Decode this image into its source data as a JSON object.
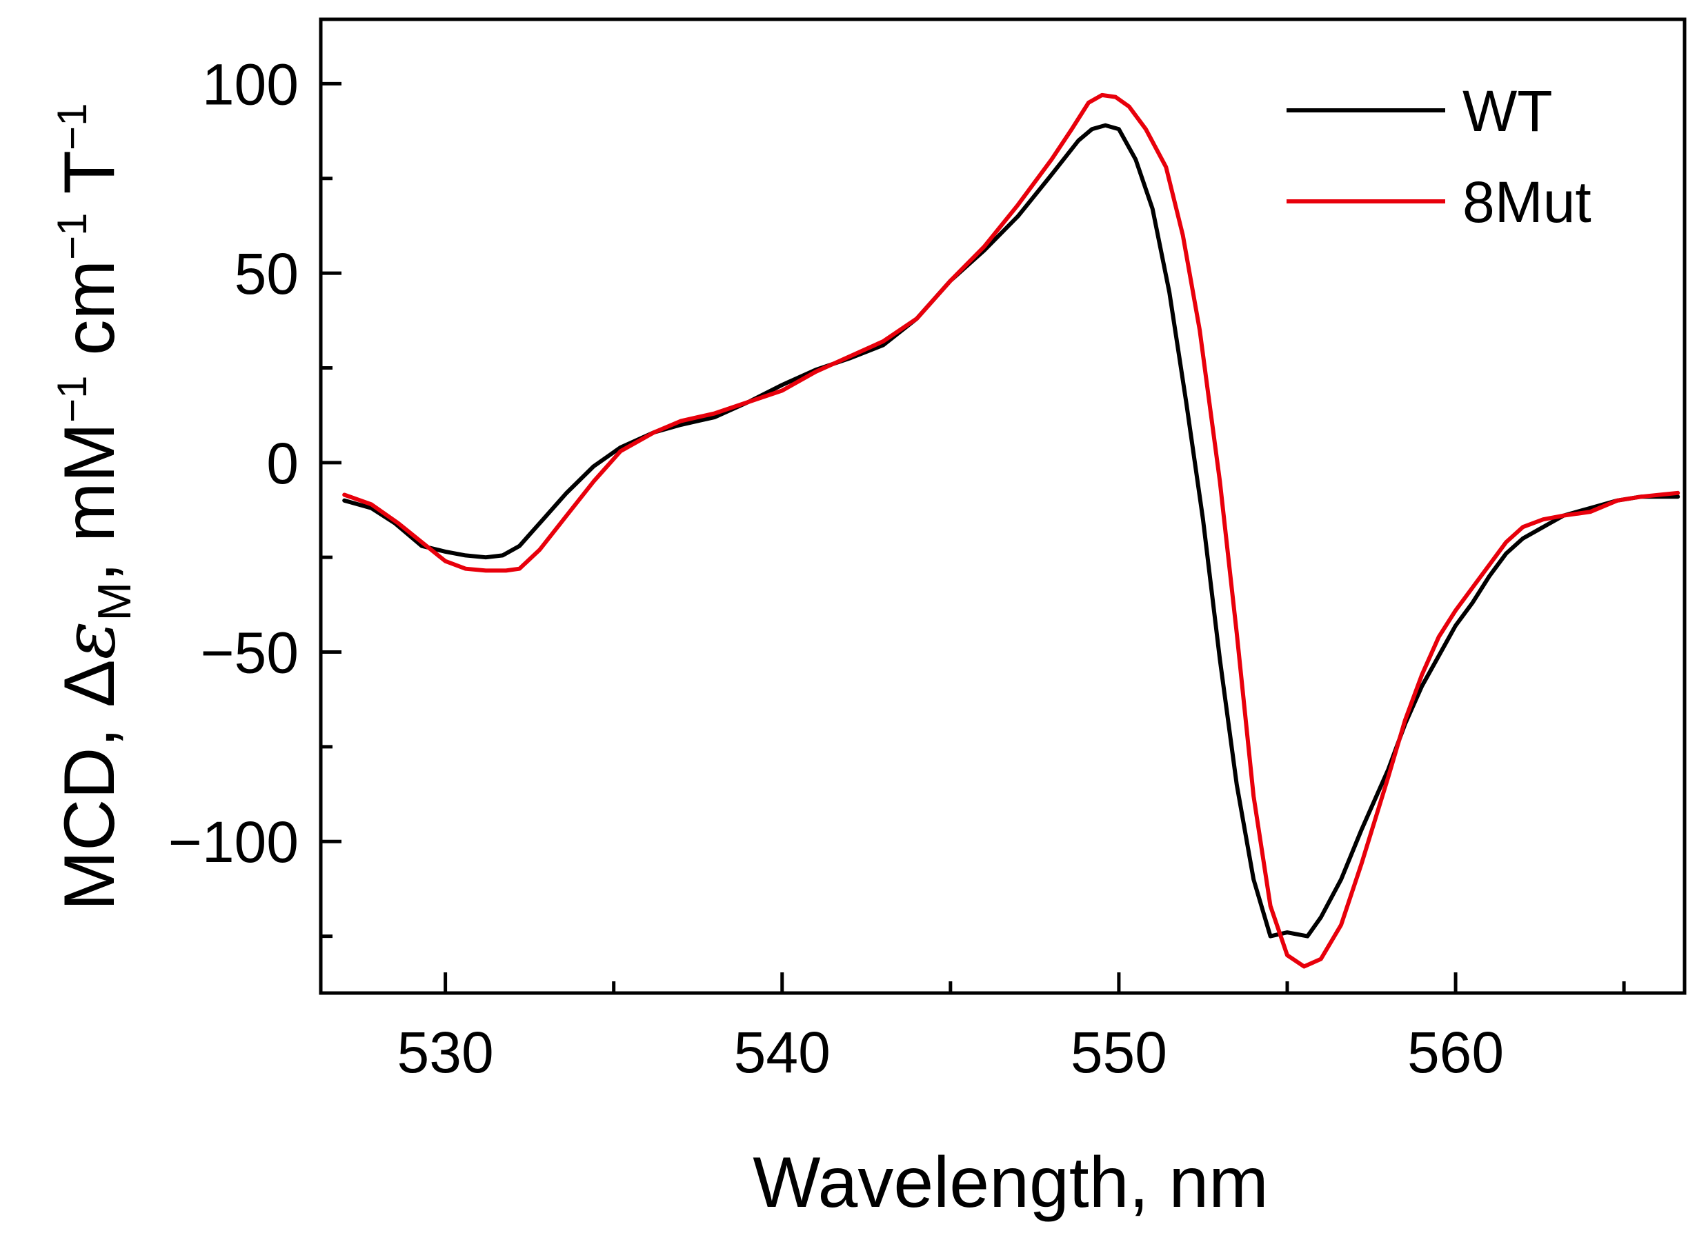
{
  "chart_data": {
    "type": "line",
    "title": "",
    "xlabel": "Wavelength, nm",
    "ylabel": {
      "prefix": "MCD, Δ",
      "epsilon": "ε",
      "epsilon_sub": "M",
      "sep": ", ",
      "mM": "mM",
      "mM_exp": "−1",
      "cm": " cm",
      "cm_exp": "−1",
      "T": " T",
      "T_exp": "−1"
    },
    "xlim": [
      526.3,
      566.8
    ],
    "ylim": [
      -140,
      117
    ],
    "x_ticks": [
      530,
      540,
      550,
      560
    ],
    "x_tick_labels": [
      "530",
      "540",
      "550",
      "560"
    ],
    "x_minor_ticks": [
      535,
      545,
      555,
      565
    ],
    "y_ticks": [
      -100,
      -50,
      0,
      50,
      100
    ],
    "y_tick_labels": [
      "−100",
      "−50",
      "0",
      "50",
      "100"
    ],
    "y_minor_ticks": [
      -125,
      -75,
      -25,
      25,
      75
    ],
    "grid": false,
    "legend_position": "top-right",
    "series": [
      {
        "name": "WT",
        "color": "#000000",
        "points": [
          [
            527.0,
            -10
          ],
          [
            527.8,
            -12
          ],
          [
            528.5,
            -16
          ],
          [
            529.3,
            -22
          ],
          [
            530.0,
            -23.5
          ],
          [
            530.6,
            -24.5
          ],
          [
            531.2,
            -25
          ],
          [
            531.7,
            -24.5
          ],
          [
            532.2,
            -22
          ],
          [
            532.8,
            -16
          ],
          [
            533.6,
            -8
          ],
          [
            534.4,
            -1
          ],
          [
            535.2,
            4
          ],
          [
            536.2,
            8
          ],
          [
            537.0,
            10
          ],
          [
            538.0,
            12
          ],
          [
            539.0,
            16
          ],
          [
            540.0,
            20.5
          ],
          [
            541.0,
            24.5
          ],
          [
            542.0,
            27.5
          ],
          [
            543.0,
            31
          ],
          [
            544.0,
            38
          ],
          [
            545.0,
            48
          ],
          [
            546.0,
            56
          ],
          [
            547.0,
            65
          ],
          [
            548.0,
            76
          ],
          [
            548.8,
            85
          ],
          [
            549.2,
            88
          ],
          [
            549.6,
            89
          ],
          [
            550.0,
            88
          ],
          [
            550.5,
            80
          ],
          [
            551.0,
            67
          ],
          [
            551.5,
            45
          ],
          [
            552.0,
            16
          ],
          [
            552.5,
            -15
          ],
          [
            553.0,
            -52
          ],
          [
            553.5,
            -85
          ],
          [
            554.0,
            -110
          ],
          [
            554.5,
            -125
          ],
          [
            555.0,
            -124
          ],
          [
            555.6,
            -125
          ],
          [
            556.0,
            -120
          ],
          [
            556.6,
            -110
          ],
          [
            557.2,
            -97
          ],
          [
            558.0,
            -81
          ],
          [
            558.5,
            -69
          ],
          [
            559.0,
            -59
          ],
          [
            559.5,
            -51
          ],
          [
            560.0,
            -43
          ],
          [
            560.5,
            -37
          ],
          [
            561.0,
            -30
          ],
          [
            561.5,
            -24
          ],
          [
            562.0,
            -20
          ],
          [
            562.6,
            -17
          ],
          [
            563.2,
            -14
          ],
          [
            564.0,
            -12
          ],
          [
            564.8,
            -10
          ],
          [
            565.5,
            -9
          ],
          [
            566.6,
            -9
          ]
        ]
      },
      {
        "name": "8Mut",
        "color": "#e8000b",
        "points": [
          [
            527.0,
            -8.5
          ],
          [
            527.8,
            -11
          ],
          [
            528.6,
            -16
          ],
          [
            529.3,
            -21
          ],
          [
            530.0,
            -26
          ],
          [
            530.6,
            -28
          ],
          [
            531.2,
            -28.5
          ],
          [
            531.8,
            -28.5
          ],
          [
            532.2,
            -28
          ],
          [
            532.8,
            -23
          ],
          [
            533.6,
            -14
          ],
          [
            534.4,
            -5
          ],
          [
            535.2,
            3
          ],
          [
            536.2,
            8
          ],
          [
            537.0,
            11
          ],
          [
            538.0,
            13
          ],
          [
            539.0,
            16
          ],
          [
            540.0,
            19
          ],
          [
            541.0,
            24
          ],
          [
            542.0,
            28
          ],
          [
            543.0,
            32
          ],
          [
            544.0,
            38
          ],
          [
            545.0,
            48
          ],
          [
            546.0,
            57
          ],
          [
            547.0,
            68
          ],
          [
            548.0,
            80
          ],
          [
            548.6,
            88
          ],
          [
            549.1,
            95
          ],
          [
            549.5,
            97
          ],
          [
            549.9,
            96.5
          ],
          [
            550.3,
            94
          ],
          [
            550.8,
            88
          ],
          [
            551.4,
            78
          ],
          [
            551.9,
            60
          ],
          [
            552.4,
            35
          ],
          [
            553.0,
            -5
          ],
          [
            553.5,
            -45
          ],
          [
            554.0,
            -88
          ],
          [
            554.5,
            -117
          ],
          [
            555.0,
            -130
          ],
          [
            555.5,
            -133
          ],
          [
            556.0,
            -131
          ],
          [
            556.6,
            -122
          ],
          [
            557.2,
            -106
          ],
          [
            558.0,
            -83
          ],
          [
            558.5,
            -68
          ],
          [
            559.0,
            -56
          ],
          [
            559.5,
            -46
          ],
          [
            560.0,
            -39
          ],
          [
            560.5,
            -33
          ],
          [
            561.0,
            -27
          ],
          [
            561.5,
            -21
          ],
          [
            562.0,
            -17
          ],
          [
            562.6,
            -15
          ],
          [
            563.2,
            -14
          ],
          [
            564.0,
            -13
          ],
          [
            564.8,
            -10
          ],
          [
            565.5,
            -9
          ],
          [
            566.6,
            -8
          ]
        ]
      }
    ]
  }
}
